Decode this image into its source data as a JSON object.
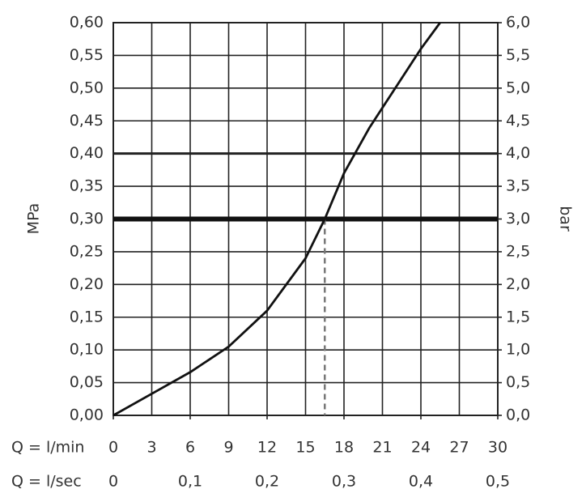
{
  "chart_data": {
    "type": "line",
    "y_label": "MPa",
    "y2_label": "bar",
    "x_label": "Q = l/min",
    "x2_label": "Q = l/sec",
    "x": [
      0,
      3,
      6,
      9,
      12,
      15,
      16.5,
      18,
      20,
      22,
      24,
      25.5
    ],
    "series": [
      {
        "color": "#111111",
        "values": [
          0,
          0.033,
          0.066,
          0.105,
          0.16,
          0.24,
          0.3,
          0.37,
          0.44,
          0.5,
          0.56,
          0.6
        ]
      }
    ],
    "xlim": [
      0,
      30
    ],
    "xticks": [
      0,
      3,
      6,
      9,
      12,
      15,
      18,
      21,
      24,
      27,
      30
    ],
    "x2lim": [
      0,
      0.5
    ],
    "x2ticks": [
      0,
      {
        "value": 0.1,
        "label": "0,1"
      },
      {
        "value": 0.2,
        "label": "0,2"
      },
      {
        "value": 0.3,
        "label": "0,3"
      },
      {
        "value": 0.4,
        "label": "0,4"
      },
      {
        "value": 0.5,
        "label": "0,5"
      }
    ],
    "ylim": [
      0,
      0.6
    ],
    "yticks": [
      {
        "value": 0,
        "label": "0,00"
      },
      {
        "value": 0.05,
        "label": "0,05"
      },
      {
        "value": 0.1,
        "label": "0,10"
      },
      {
        "value": 0.15,
        "label": "0,15"
      },
      {
        "value": 0.2,
        "label": "0,20"
      },
      {
        "value": 0.25,
        "label": "0,25"
      },
      {
        "value": 0.3,
        "label": "0,30"
      },
      {
        "value": 0.35,
        "label": "0,35"
      },
      {
        "value": 0.4,
        "label": "0,40"
      },
      {
        "value": 0.45,
        "label": "0,45"
      },
      {
        "value": 0.5,
        "label": "0,50"
      },
      {
        "value": 0.55,
        "label": "0,55"
      },
      {
        "value": 0.6,
        "label": "0,60"
      }
    ],
    "y2lim": [
      0,
      6
    ],
    "y2ticks": [
      {
        "value": 0,
        "label": "0,0"
      },
      {
        "value": 0.5,
        "label": "0,5"
      },
      {
        "value": 1,
        "label": "1,0"
      },
      {
        "value": 1.5,
        "label": "1,5"
      },
      {
        "value": 2,
        "label": "2,0"
      },
      {
        "value": 2.5,
        "label": "2,5"
      },
      {
        "value": 3,
        "label": "3,0"
      },
      {
        "value": 3.5,
        "label": "3,5"
      },
      {
        "value": 4,
        "label": "4,0"
      },
      {
        "value": 4.5,
        "label": "4,5"
      },
      {
        "value": 5,
        "label": "5,0"
      },
      {
        "value": 5.5,
        "label": "5,5"
      },
      {
        "value": 6,
        "label": "6,0"
      }
    ],
    "grid": true,
    "emphasized_y": 0.4,
    "marked_point": {
      "x": 16.5,
      "y": 0.3
    }
  }
}
